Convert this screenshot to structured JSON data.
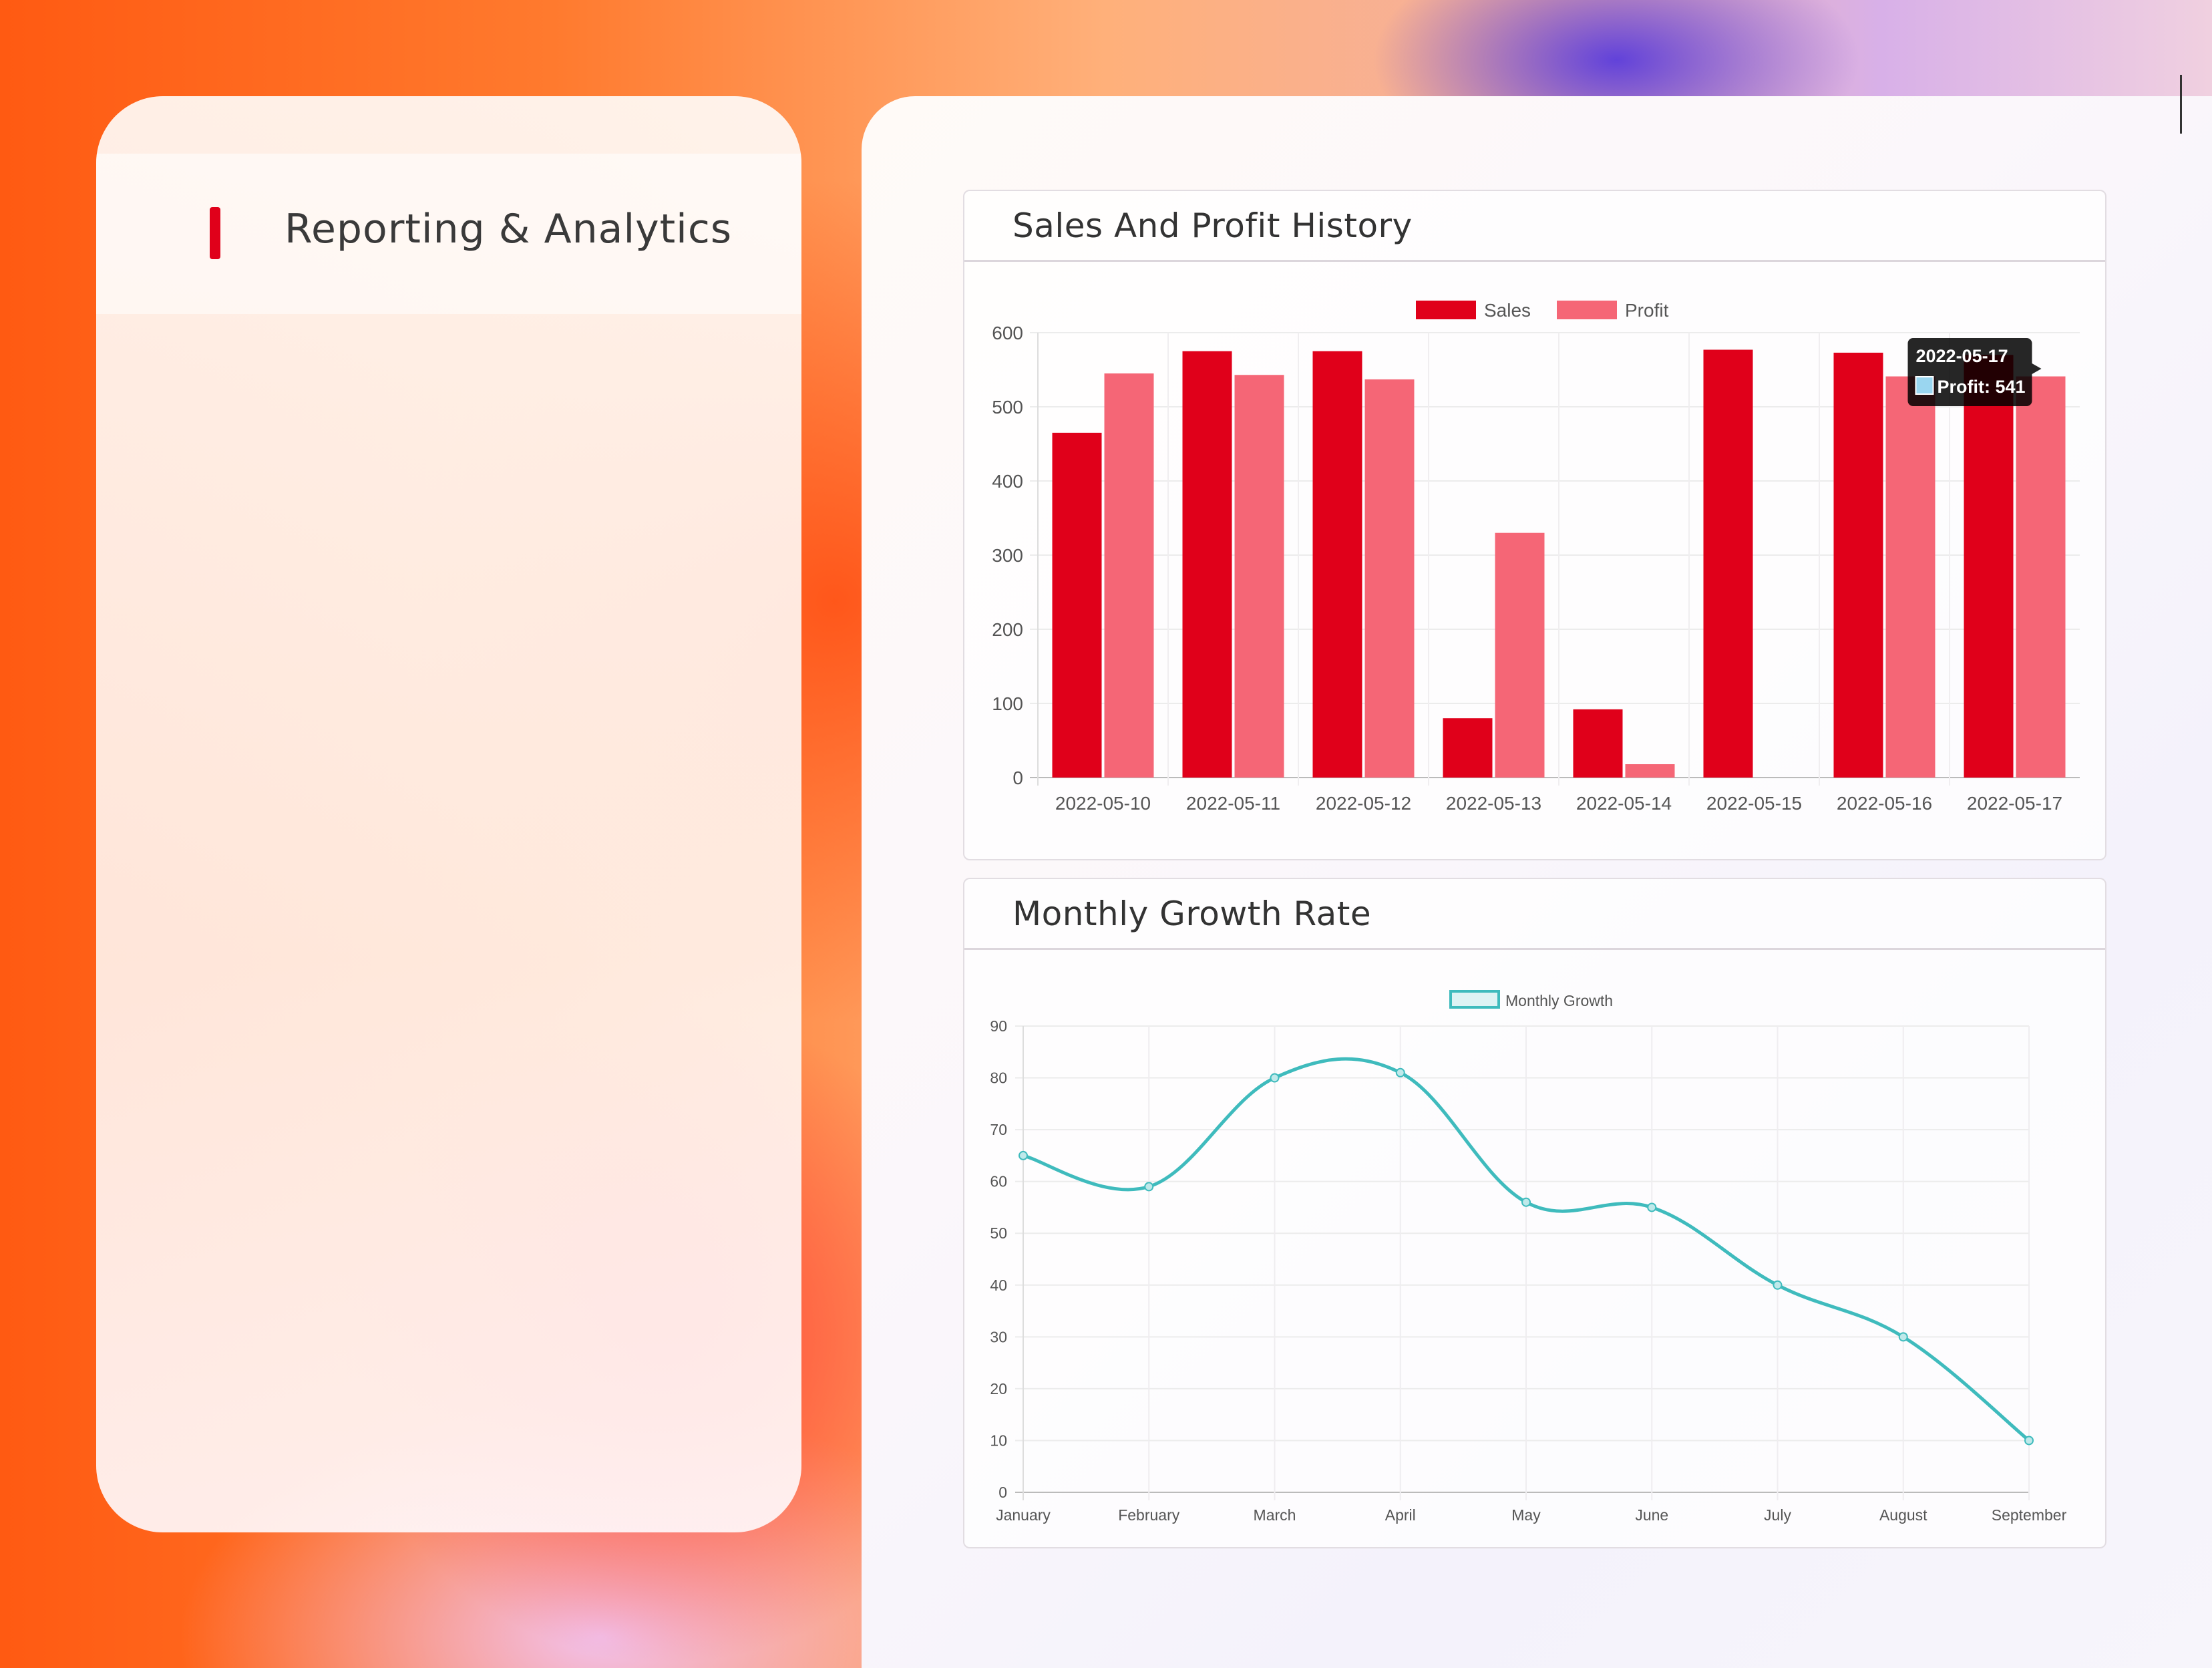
{
  "sidebar": {
    "title": "Reporting & Analytics"
  },
  "colors": {
    "accent": "#e0001a",
    "sales": "#e0001a",
    "profit": "#f56676",
    "growth_line": "#3fbbbd"
  },
  "sales_card": {
    "title": "Sales And Profit History",
    "tooltip": {
      "title": "2022-05-17",
      "label": "Profit: 541"
    }
  },
  "growth_card": {
    "title": "Monthly Growth Rate"
  },
  "chart_data": [
    {
      "type": "bar",
      "categories": [
        "2022-05-10",
        "2022-05-11",
        "2022-05-12",
        "2022-05-13",
        "2022-05-14",
        "2022-05-15",
        "2022-05-16",
        "2022-05-17"
      ],
      "series": [
        {
          "name": "Sales",
          "values": [
            465,
            575,
            575,
            80,
            92,
            577,
            573,
            570
          ]
        },
        {
          "name": "Profit",
          "values": [
            545,
            543,
            537,
            330,
            18,
            0,
            541,
            541
          ]
        }
      ],
      "ylim": [
        0,
        600
      ],
      "yticks": [
        0,
        100,
        200,
        300,
        400,
        500,
        600
      ],
      "legend": "top-center",
      "grid": true
    },
    {
      "type": "line",
      "categories": [
        "January",
        "February",
        "March",
        "April",
        "May",
        "June",
        "July",
        "August",
        "September"
      ],
      "series": [
        {
          "name": "Monthly Growth",
          "values": [
            65,
            59,
            80,
            81,
            56,
            55,
            40,
            30,
            10
          ]
        }
      ],
      "ylim": [
        0,
        90
      ],
      "yticks": [
        0,
        10,
        20,
        30,
        40,
        50,
        60,
        70,
        80,
        90
      ],
      "legend": "top-center",
      "grid": true
    }
  ]
}
